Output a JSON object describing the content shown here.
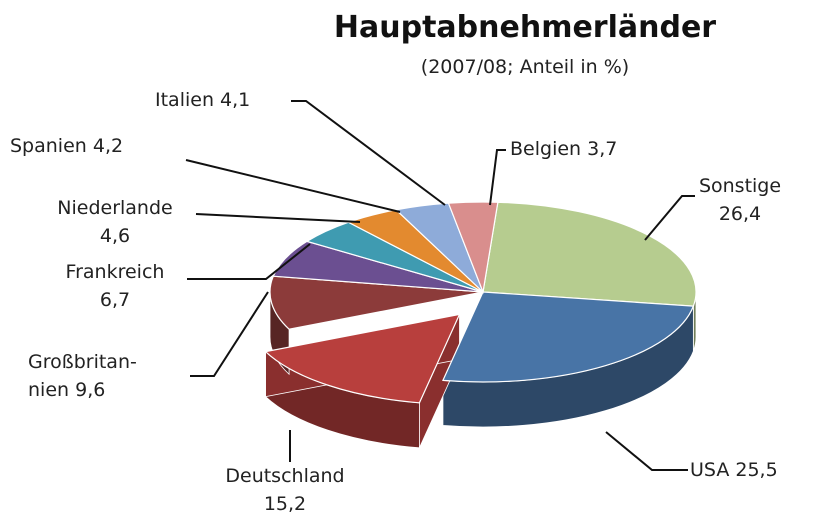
{
  "chart_data": {
    "type": "pie3d",
    "title": "Hauptabnehmerländer",
    "subtitle": "(2007/08; Anteil in %)",
    "categories": [
      "Sonstige",
      "USA",
      "Deutschland",
      "Großbritan-nien",
      "Frankreich",
      "Niederlande",
      "Spanien",
      "Italien",
      "Belgien"
    ],
    "values": [
      26.4,
      25.5,
      15.2,
      9.6,
      6.7,
      4.6,
      4.2,
      4.1,
      3.7
    ],
    "value_labels": [
      "26,4",
      "25,5",
      "15,2",
      "9,6",
      "6,7",
      "4,6",
      "4,2",
      "4,1",
      "3,7"
    ],
    "colors": [
      "#b6cc8f",
      "#4874a6",
      "#b83f3d",
      "#8c3b3a",
      "#6b4f91",
      "#3f9bb1",
      "#e38a2f",
      "#8eabd9",
      "#d98e8d"
    ],
    "exploded": [
      "Deutschland"
    ]
  }
}
